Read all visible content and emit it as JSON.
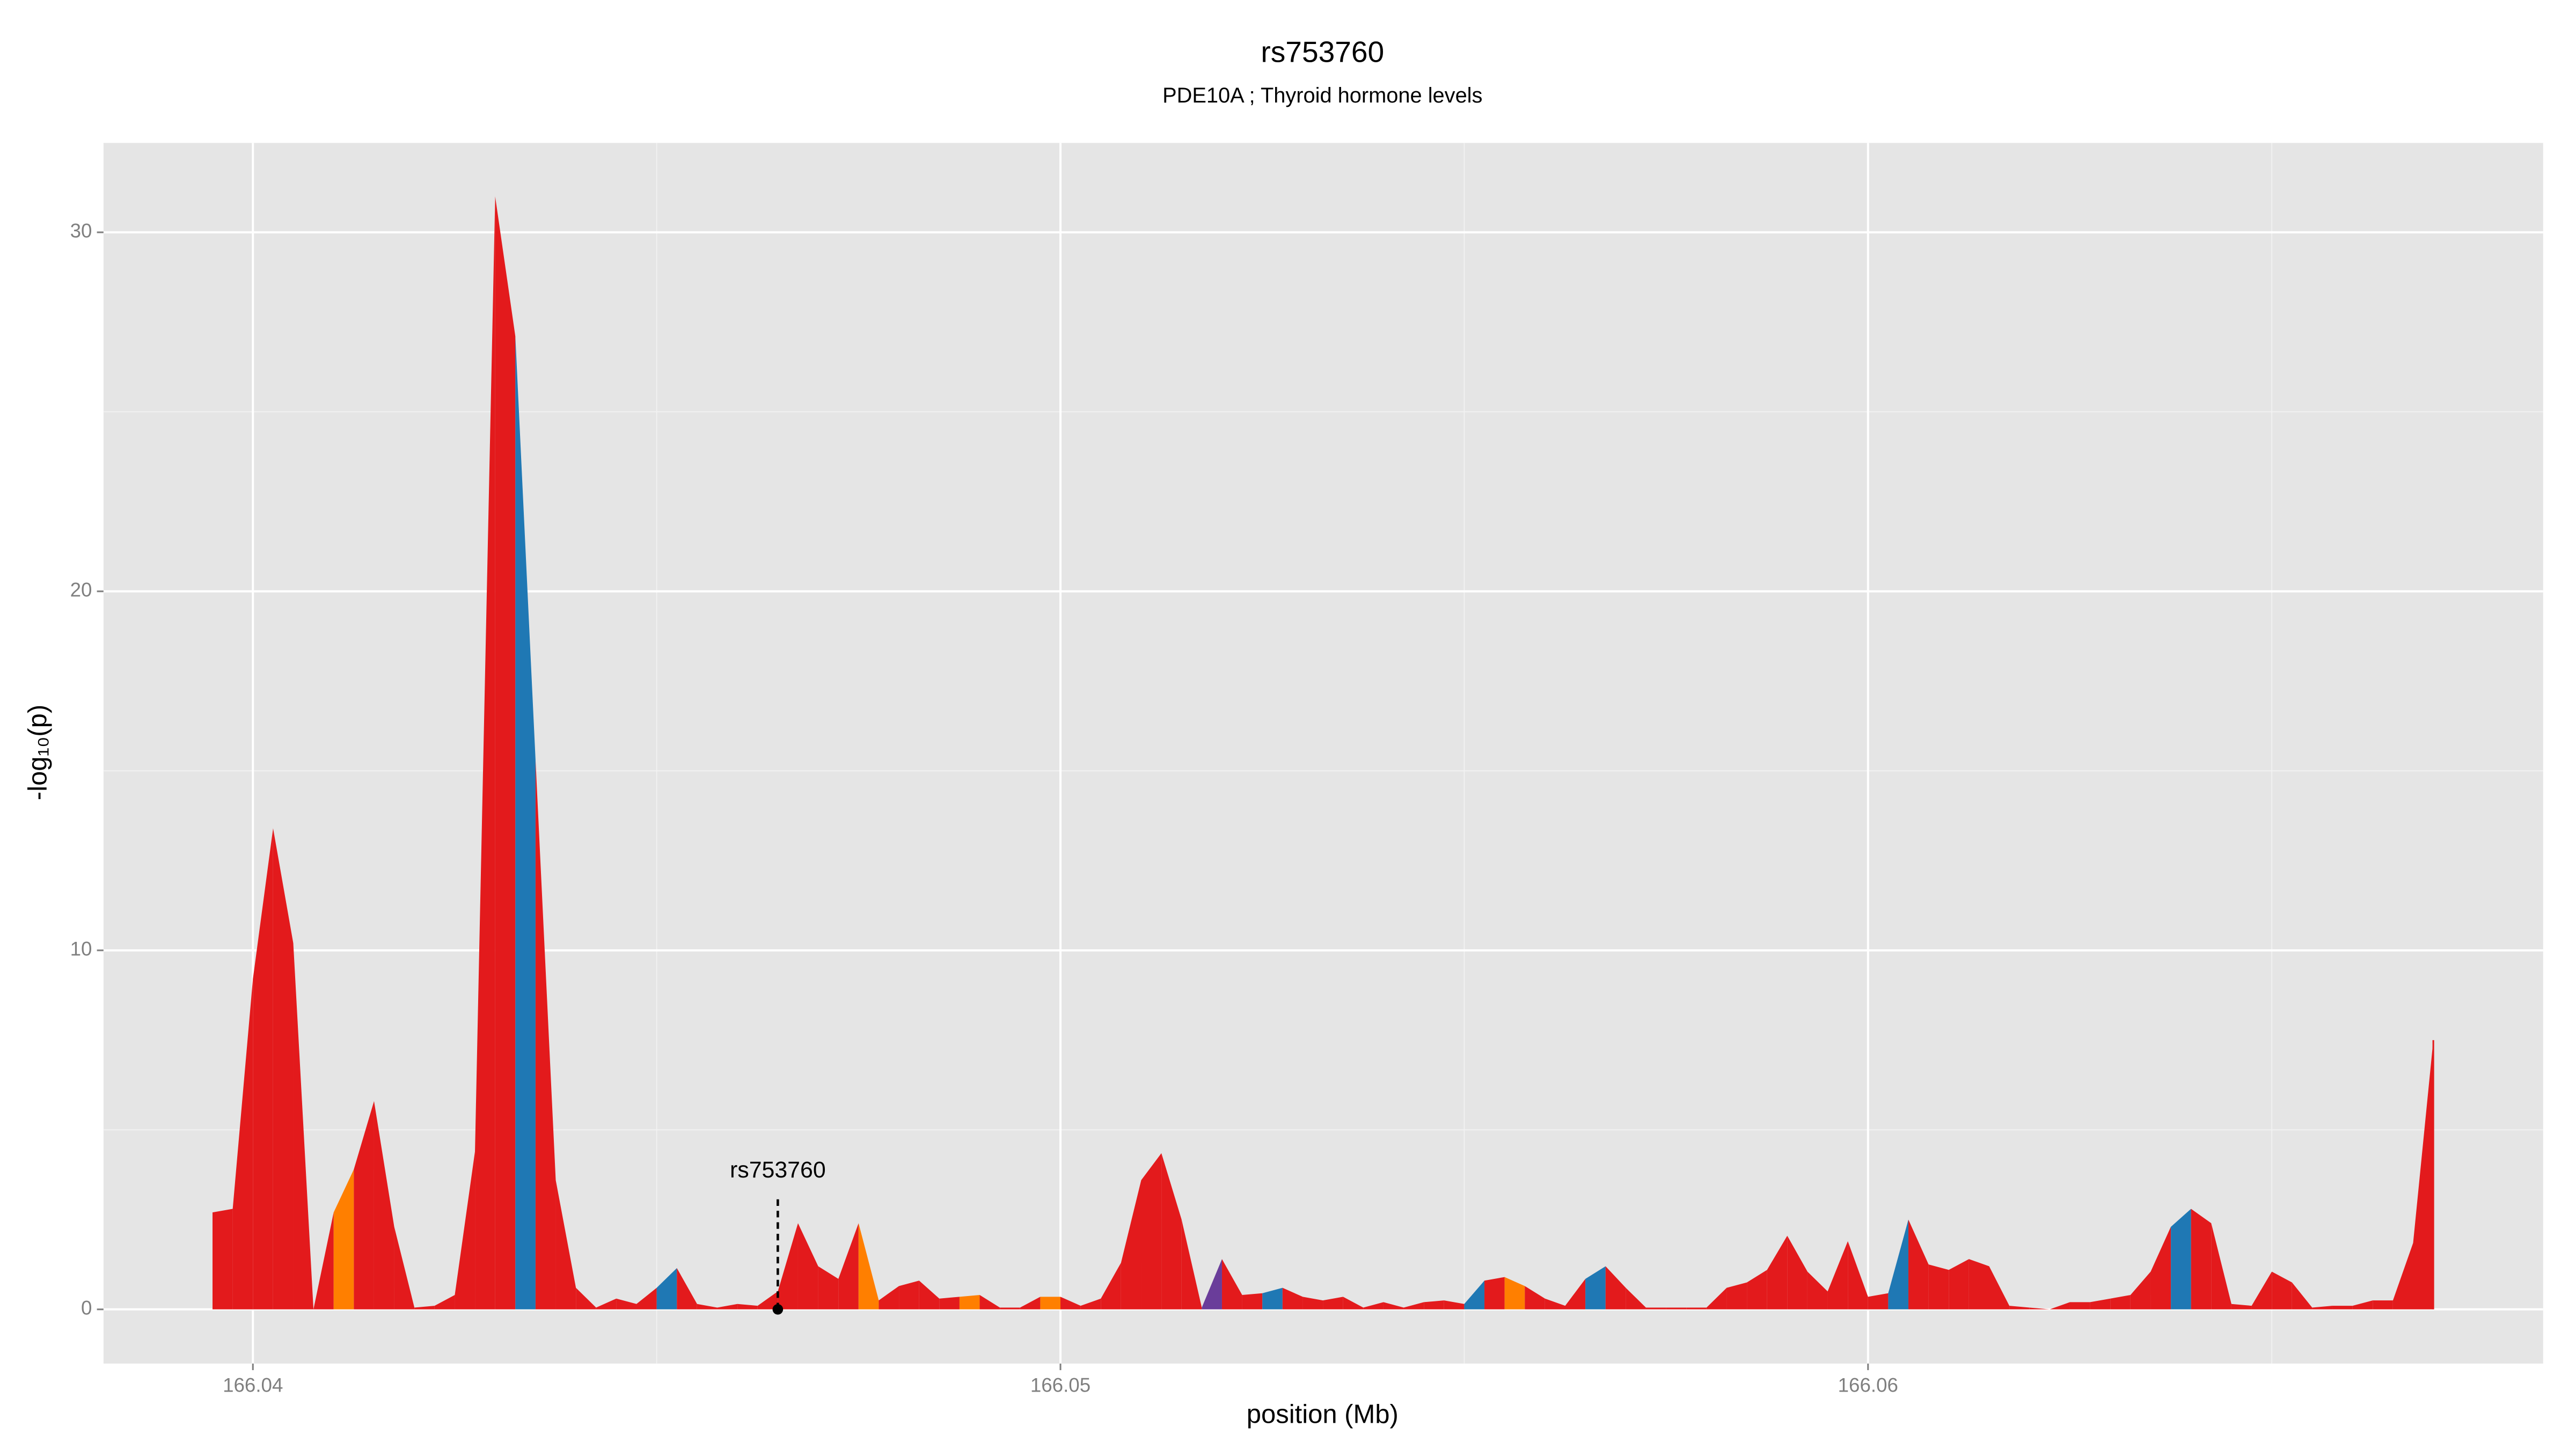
{
  "chart_data": {
    "type": "area",
    "title": "rs753760",
    "subtitle": "PDE10A ; Thyroid hormone levels",
    "x_label": "position (Mb)",
    "y_label": "-log₁₀(p)",
    "xlim": [
      166.03815,
      166.06836
    ],
    "ylim": [
      -1.51,
      32.49
    ],
    "xticks": [
      166.04,
      166.05,
      166.06
    ],
    "yticks": [
      0,
      10,
      20,
      30
    ],
    "xminor": [
      166.045,
      166.055,
      166.065
    ],
    "yminor": [
      5,
      15,
      25
    ],
    "grid": true,
    "x": [
      166.0395,
      166.03975,
      166.04,
      166.04025,
      166.0405,
      166.04075,
      166.041,
      166.04125,
      166.0415,
      166.04175,
      166.042,
      166.04225,
      166.0425,
      166.04275,
      166.043,
      166.04325,
      166.0435,
      166.04375,
      166.044,
      166.04425,
      166.0445,
      166.04475,
      166.045,
      166.04525,
      166.0455,
      166.04575,
      166.046,
      166.04625,
      166.0465,
      166.04675,
      166.047,
      166.04725,
      166.0475,
      166.04775,
      166.048,
      166.04825,
      166.0485,
      166.04875,
      166.049,
      166.04925,
      166.0495,
      166.04975,
      166.05,
      166.05025,
      166.0505,
      166.05075,
      166.051,
      166.05125,
      166.0515,
      166.05175,
      166.052,
      166.05225,
      166.0525,
      166.05275,
      166.053,
      166.05325,
      166.0535,
      166.05375,
      166.054,
      166.05425,
      166.0545,
      166.05475,
      166.055,
      166.05525,
      166.0555,
      166.05575,
      166.056,
      166.05625,
      166.0565,
      166.05675,
      166.057,
      166.05725,
      166.0575,
      166.05775,
      166.058,
      166.05825,
      166.0585,
      166.05875,
      166.059,
      166.05925,
      166.0595,
      166.05975,
      166.06,
      166.06025,
      166.0605,
      166.06075,
      166.061,
      166.06125,
      166.0615,
      166.06175,
      166.062,
      166.06225,
      166.0625,
      166.06275,
      166.063,
      166.06325,
      166.0635,
      166.06375,
      166.064,
      166.06425,
      166.0645,
      166.06475,
      166.065,
      166.06525,
      166.0655,
      166.06575,
      166.066,
      166.06625,
      166.0665,
      166.06675,
      166.067
    ],
    "values": [
      2.7,
      2.8,
      9.2,
      13.4,
      10.2,
      0,
      2.7,
      3.9,
      5.8,
      2.3,
      0.05,
      0.1,
      0.4,
      4.4,
      31.0,
      27.1,
      15.3,
      3.6,
      0.6,
      0.05,
      0.3,
      0.15,
      0.6,
      1.15,
      0.15,
      0.05,
      0.15,
      0.1,
      0.5,
      2.4,
      1.2,
      0.85,
      2.4,
      0.25,
      0.65,
      0.8,
      0.3,
      0.35,
      0.4,
      0.05,
      0.05,
      0.35,
      0.35,
      0.1,
      0.3,
      1.3,
      3.6,
      4.35,
      2.5,
      0.05,
      1.4,
      0.4,
      0.45,
      0.6,
      0.35,
      0.25,
      0.35,
      0.05,
      0.2,
      0.05,
      0.2,
      0.25,
      0.15,
      0.8,
      0.9,
      0.65,
      0.3,
      0.1,
      0.85,
      1.2,
      0.6,
      0.05,
      0.05,
      0.05,
      0.05,
      0.6,
      0.75,
      1.1,
      2.05,
      1.05,
      0.5,
      1.9,
      0.35,
      0.45,
      2.5,
      1.25,
      1.1,
      1.4,
      1.2,
      0.1,
      0.05,
      0,
      0.2,
      0.2,
      0.3,
      0.4,
      1.05,
      2.3,
      2.8,
      2.4,
      0.15,
      0.1,
      1.05,
      0.75,
      0.05,
      0.1,
      0.1,
      0.25,
      0.25,
      1.85,
      7.5
    ],
    "colors": [
      "#e31a1c",
      "#e31a1c",
      "#e31a1c",
      "#e31a1c",
      "#e31a1c",
      "#e31a1c",
      "#ff7f00",
      "#e31a1c",
      "#e31a1c",
      "#e31a1c",
      "#e31a1c",
      "#e31a1c",
      "#e31a1c",
      "#e31a1c",
      "#e31a1c",
      "#1f78b4",
      "#e31a1c",
      "#e31a1c",
      "#e31a1c",
      "#e31a1c",
      "#e31a1c",
      "#e31a1c",
      "#1f78b4",
      "#e31a1c",
      "#e31a1c",
      "#e31a1c",
      "#e31a1c",
      "#e31a1c",
      "#e31a1c",
      "#e31a1c",
      "#e31a1c",
      "#e31a1c",
      "#ff7f00",
      "#e31a1c",
      "#e31a1c",
      "#e31a1c",
      "#e31a1c",
      "#ff7f00",
      "#e31a1c",
      "#e31a1c",
      "#e31a1c",
      "#ff7f00",
      "#e31a1c",
      "#e31a1c",
      "#e31a1c",
      "#e31a1c",
      "#e31a1c",
      "#e31a1c",
      "#e31a1c",
      "#6a3d9a",
      "#e31a1c",
      "#e31a1c",
      "#1f78b4",
      "#e31a1c",
      "#e31a1c",
      "#e31a1c",
      "#e31a1c",
      "#e31a1c",
      "#e31a1c",
      "#e31a1c",
      "#e31a1c",
      "#e31a1c",
      "#1f78b4",
      "#e31a1c",
      "#ff7f00",
      "#e31a1c",
      "#e31a1c",
      "#e31a1c",
      "#1f78b4",
      "#e31a1c",
      "#e31a1c",
      "#e31a1c",
      "#e31a1c",
      "#e31a1c",
      "#e31a1c",
      "#e31a1c",
      "#e31a1c",
      "#e31a1c",
      "#e31a1c",
      "#e31a1c",
      "#e31a1c",
      "#e31a1c",
      "#e31a1c",
      "#1f78b4",
      "#e31a1c",
      "#e31a1c",
      "#e31a1c",
      "#e31a1c",
      "#e31a1c",
      "#e31a1c",
      "#e31a1c",
      "#e31a1c",
      "#e31a1c",
      "#e31a1c",
      "#e31a1c",
      "#e31a1c",
      "#e31a1c",
      "#1f78b4",
      "#e31a1c",
      "#e31a1c",
      "#e31a1c",
      "#e31a1c",
      "#e31a1c",
      "#e31a1c",
      "#e31a1c",
      "#e31a1c",
      "#e31a1c",
      "#e31a1c",
      "#e31a1c",
      "#e31a1c",
      "#e31a1c"
    ],
    "annotation": {
      "text": "rs753760",
      "x": 166.0465,
      "y": 0
    }
  }
}
